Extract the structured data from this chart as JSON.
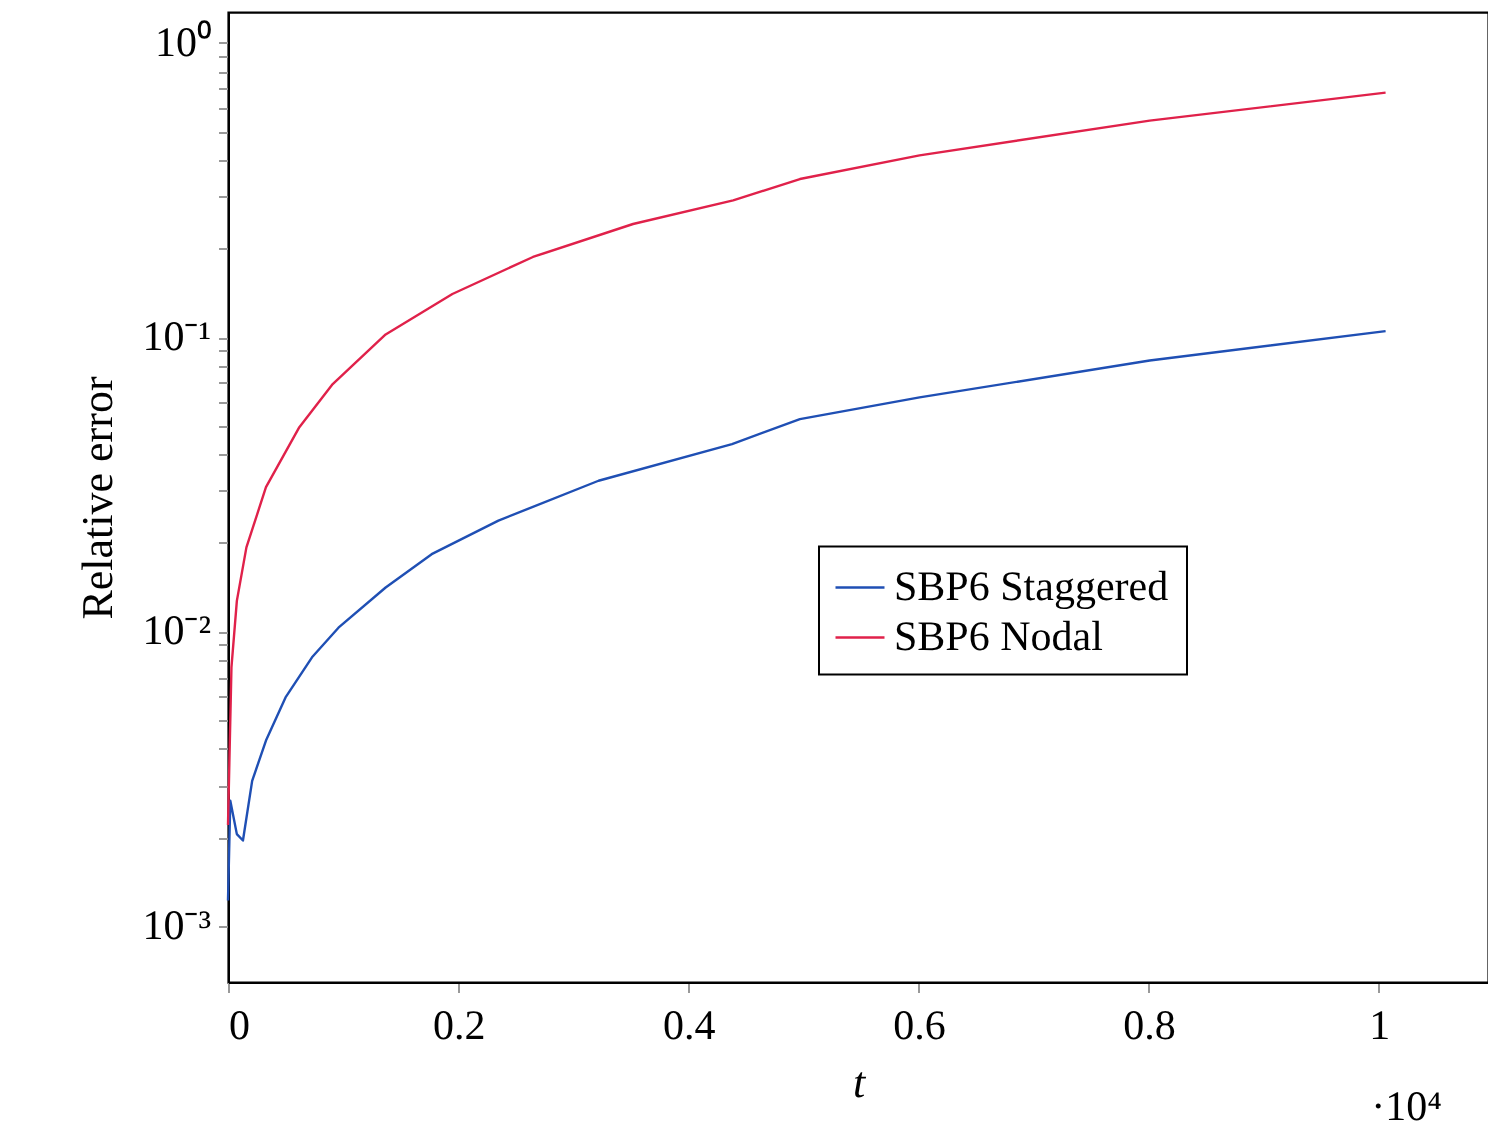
{
  "chart_data": {
    "type": "line",
    "xlabel": "t",
    "ylabel": "Relative error",
    "log": "y",
    "legend": "right",
    "grid": false,
    "marker": "none",
    "line_style": "solid",
    "xlim": [
      0,
      1.095
    ],
    "xticks": [
      0,
      0.2,
      0.4,
      0.6,
      0.8,
      1
    ],
    "ylim": [
      0.000645,
      1.27
    ],
    "yticks": [
      {
        "value": 0.001,
        "label": "10⁻³"
      },
      {
        "value": 0.002,
        "label": null
      },
      {
        "value": 0.003,
        "label": null
      },
      {
        "value": 0.004,
        "label": null
      },
      {
        "value": 0.005,
        "label": null
      },
      {
        "value": 0.006,
        "label": null
      },
      {
        "value": 0.007,
        "label": null
      },
      {
        "value": 0.008,
        "label": null
      },
      {
        "value": 0.009,
        "label": null
      },
      {
        "value": 0.01,
        "label": "10⁻²"
      },
      {
        "value": 0.02,
        "label": null
      },
      {
        "value": 0.03,
        "label": null
      },
      {
        "value": 0.04,
        "label": null
      },
      {
        "value": 0.05,
        "label": null
      },
      {
        "value": 0.06,
        "label": null
      },
      {
        "value": 0.07,
        "label": null
      },
      {
        "value": 0.08,
        "label": null
      },
      {
        "value": 0.09,
        "label": null
      },
      {
        "value": 0.1,
        "label": "10⁻¹"
      },
      {
        "value": 0.2,
        "label": null
      },
      {
        "value": 0.3,
        "label": null
      },
      {
        "value": 0.4,
        "label": null
      },
      {
        "value": 0.5,
        "label": null
      },
      {
        "value": 0.6,
        "label": null
      },
      {
        "value": 0.7,
        "label": null
      },
      {
        "value": 0.8,
        "label": null
      },
      {
        "value": 0.9,
        "label": null
      },
      {
        "value": 1,
        "label": "10⁰"
      }
    ],
    "annotations": [
      "·10⁴"
    ],
    "series": [
      {
        "name": "SBP6 Staggered",
        "color": "#1f4fb4",
        "x": [
          0,
          0.002,
          0.0077,
          0.013,
          0.021,
          0.033,
          0.05,
          0.073,
          0.096,
          0.137,
          0.177,
          0.235,
          0.322,
          0.438,
          0.497,
          0.601,
          0.801,
          1.006
        ],
        "values": [
          0.00122,
          0.00266,
          0.00205,
          0.00195,
          0.00311,
          0.00426,
          0.00597,
          0.00817,
          0.0103,
          0.0141,
          0.0183,
          0.0238,
          0.0325,
          0.0433,
          0.0526,
          0.0624,
          0.0832,
          0.1047
        ]
      },
      {
        "name": "SBP6 Nodal",
        "color": "#e0214a",
        "x": [
          0,
          0.003,
          0.0077,
          0.016,
          0.033,
          0.062,
          0.091,
          0.137,
          0.195,
          0.265,
          0.352,
          0.439,
          0.497,
          0.601,
          0.801,
          1.006
        ],
        "values": [
          0.0022,
          0.00755,
          0.0127,
          0.0193,
          0.0309,
          0.0494,
          0.0692,
          0.102,
          0.14,
          0.187,
          0.242,
          0.291,
          0.344,
          0.414,
          0.543,
          0.676
        ]
      }
    ]
  }
}
